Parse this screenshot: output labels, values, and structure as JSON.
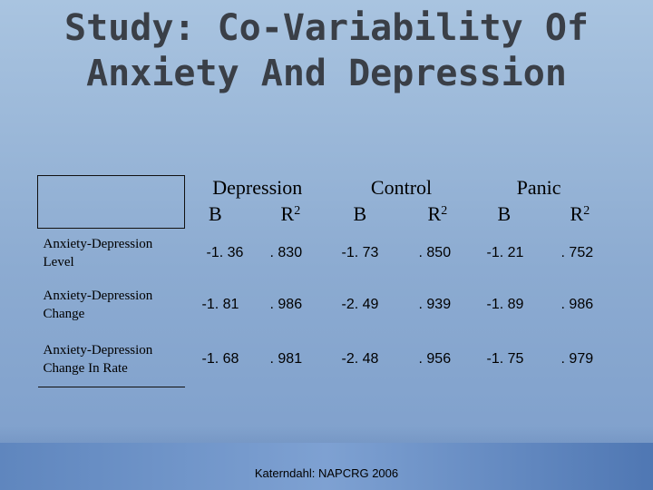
{
  "slide": {
    "title_line1": "Study: Co-Variability Of",
    "title_line2": "Anxiety And Depression",
    "footer": "Katerndahl: NAPCRG 2006"
  },
  "table": {
    "groups": [
      "Depression",
      "Control",
      "Panic"
    ],
    "sub_b": "B",
    "sub_r": "R",
    "sub_r_sup": "2",
    "rows": [
      {
        "label_line1": "Anxiety-Depression",
        "label_line2": "Level",
        "values": [
          "-1. 36",
          ". 830",
          "-1. 73",
          ". 850",
          "-1. 21",
          ". 752"
        ]
      },
      {
        "label_line1": "Anxiety-Depression",
        "label_line2": "Change",
        "values": [
          "-1. 81",
          ". 986",
          "-2. 49",
          ". 939",
          "-1. 89",
          ". 986"
        ]
      },
      {
        "label_line1": "Anxiety-Depression",
        "label_line2": "Change In Rate",
        "values": [
          "-1. 68",
          ". 981",
          "-2. 48",
          ". 956",
          "-1. 75",
          ". 979"
        ]
      }
    ]
  },
  "colors": {
    "background": "#8cabd1",
    "title": "#3a3f47",
    "bottom_bar": "#5f86be"
  }
}
